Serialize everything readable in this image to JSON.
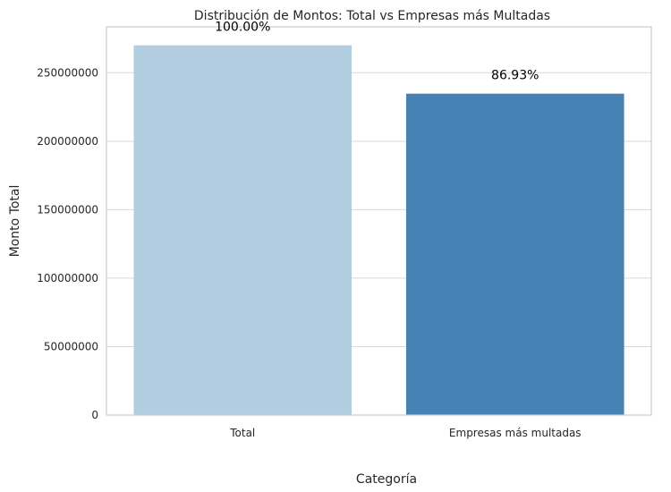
{
  "chart_data": {
    "type": "bar",
    "title": "Distribución de Montos: Total vs Empresas más Multadas",
    "xlabel": "Categoría",
    "ylabel": "Monto Total",
    "categories": [
      "Total",
      "Empresas más multadas"
    ],
    "values": [
      270000000,
      234700000
    ],
    "data_labels": [
      "100.00%",
      "86.93%"
    ],
    "colors": [
      "#b3cde0",
      "#4682b4"
    ],
    "ylim": [
      0,
      283500000
    ],
    "yticks": [
      0,
      50000000,
      100000000,
      150000000,
      200000000,
      250000000
    ],
    "ytick_labels": [
      "0",
      "50000000",
      "100000000",
      "150000000",
      "200000000",
      "250000000"
    ],
    "grid": true,
    "legend": false
  }
}
